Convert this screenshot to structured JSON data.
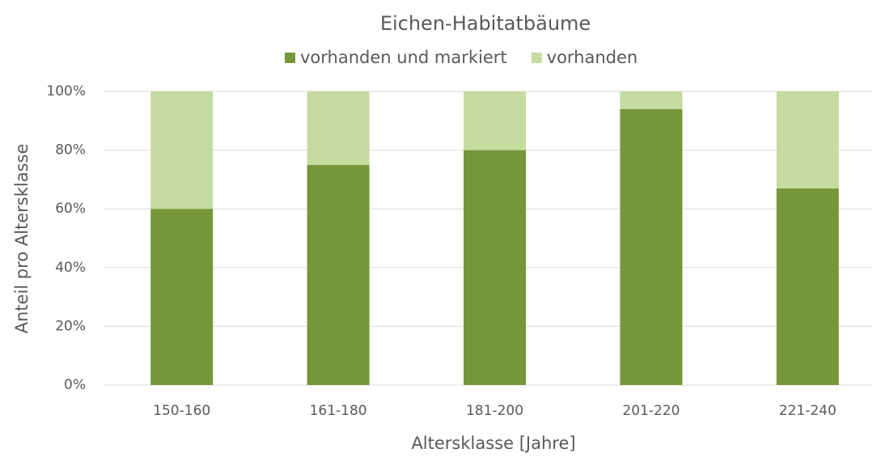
{
  "chart_data": {
    "type": "stacked_bar",
    "title": "Eichen-Habitatbäume",
    "x_label": "Altersklasse [Jahre]",
    "y_label": "Anteil pro Altersklasse",
    "categories": [
      "150-160",
      "161-180",
      "181-200",
      "201-220",
      "221-240"
    ],
    "series": [
      {
        "name": "vorhanden und markiert",
        "color": "#76963a",
        "values": [
          60,
          75,
          80,
          94,
          67
        ]
      },
      {
        "name": "vorhanden",
        "color": "#c5dba0",
        "values": [
          40,
          25,
          20,
          6,
          33
        ]
      }
    ],
    "ylim": [
      0,
      100
    ],
    "yticks": [
      {
        "value": 0,
        "label": "0%"
      },
      {
        "value": 20,
        "label": "20%"
      },
      {
        "value": 40,
        "label": "40%"
      },
      {
        "value": 60,
        "label": "60%"
      },
      {
        "value": 80,
        "label": "80%"
      },
      {
        "value": 100,
        "label": "100%"
      }
    ],
    "grid": true,
    "legend": "top"
  }
}
